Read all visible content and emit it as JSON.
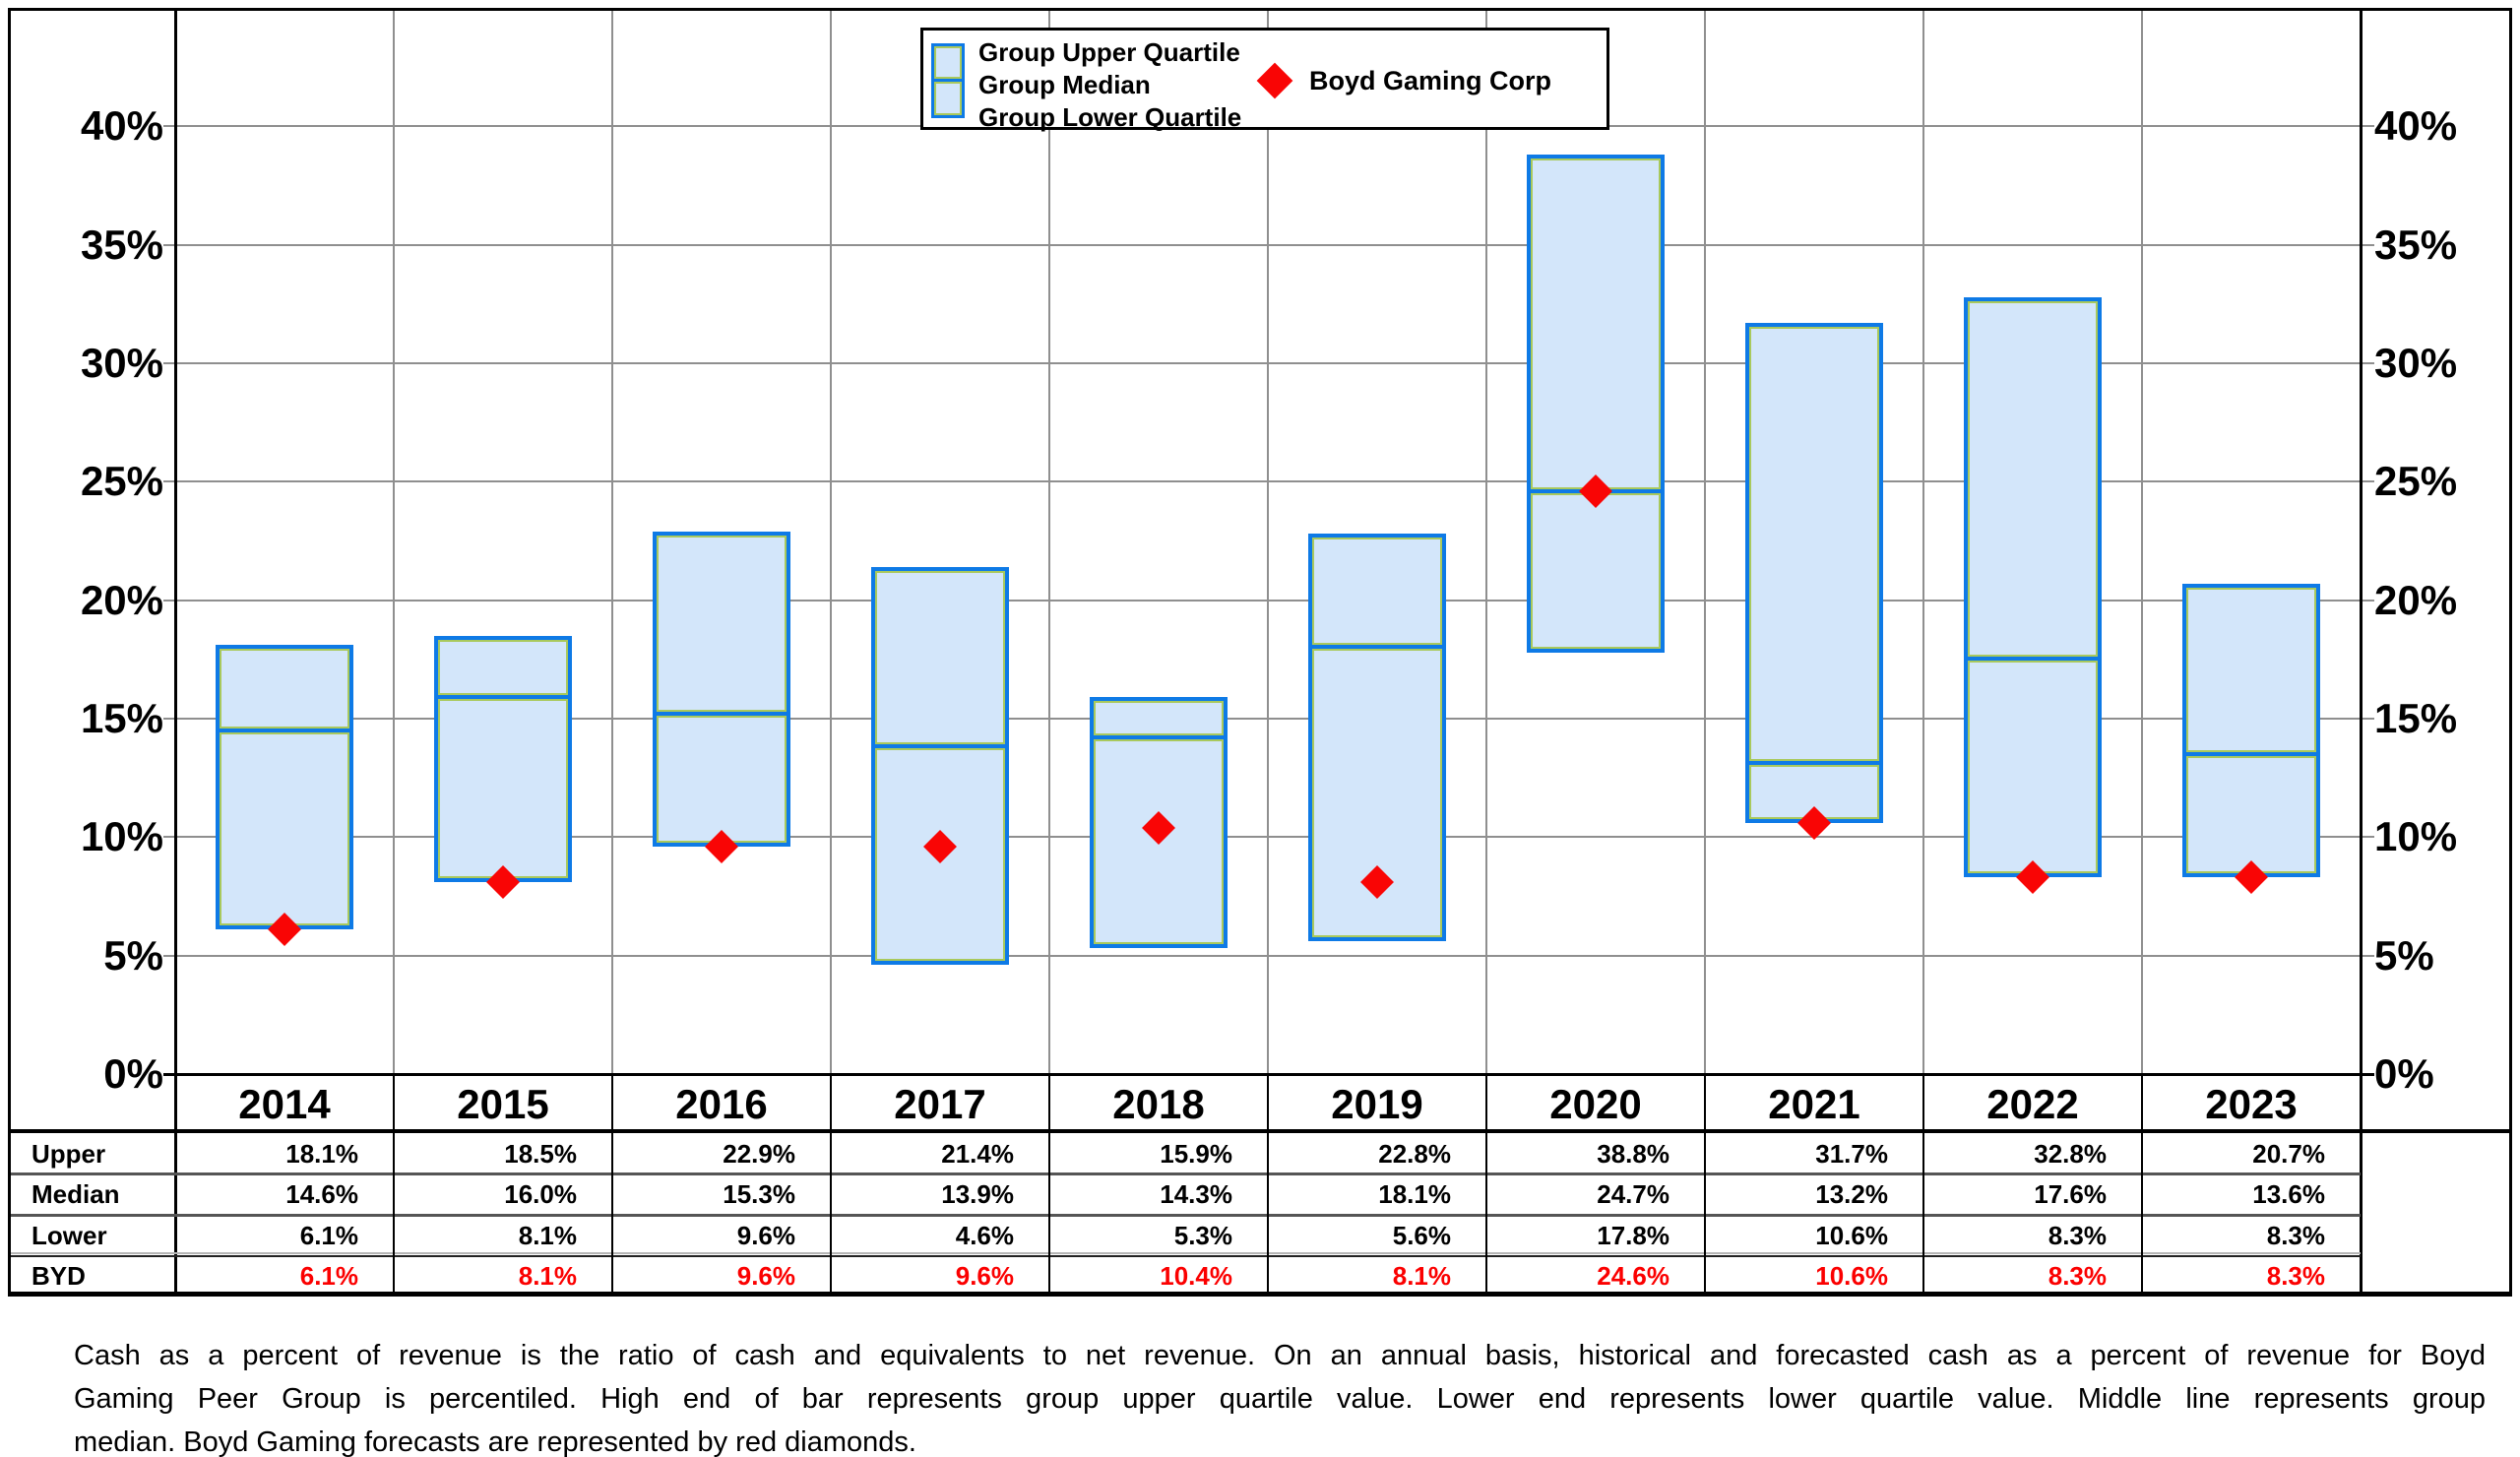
{
  "chart_data": {
    "type": "bar",
    "subtype": "floating-quartile-range-bars-with-diamond-markers",
    "categories": [
      "2014",
      "2015",
      "2016",
      "2017",
      "2018",
      "2019",
      "2020",
      "2021",
      "2022",
      "2023"
    ],
    "series": [
      {
        "name": "Group Upper Quartile",
        "values": [
          18.1,
          18.5,
          22.9,
          21.4,
          15.9,
          22.8,
          38.8,
          31.7,
          32.8,
          20.7
        ]
      },
      {
        "name": "Group Median",
        "values": [
          14.6,
          16.0,
          15.3,
          13.9,
          14.3,
          18.1,
          24.7,
          13.2,
          17.6,
          13.6
        ]
      },
      {
        "name": "Group Lower Quartile",
        "values": [
          6.1,
          8.1,
          9.6,
          4.6,
          5.3,
          5.6,
          17.8,
          10.6,
          8.3,
          8.3
        ]
      },
      {
        "name": "Boyd Gaming Corp",
        "values": [
          6.1,
          8.1,
          9.6,
          9.6,
          10.4,
          8.1,
          24.6,
          10.6,
          8.3,
          8.3
        ]
      }
    ],
    "ylim": [
      0,
      45
    ],
    "yticks": [
      0,
      5,
      10,
      15,
      20,
      25,
      30,
      35,
      40
    ],
    "ytick_suffix": "%",
    "grid": true,
    "legend_position": "top-center",
    "marker_style": "red-diamond"
  },
  "legend": {
    "group_labels": [
      "Group Upper Quartile",
      "Group Median",
      "Group Lower Quartile"
    ],
    "marker_label": "Boyd Gaming Corp"
  },
  "table": {
    "row_labels": [
      "Upper",
      "Median",
      "Lower",
      "BYD"
    ],
    "columns": [
      "2014",
      "2015",
      "2016",
      "2017",
      "2018",
      "2019",
      "2020",
      "2021",
      "2022",
      "2023"
    ],
    "rows": [
      [
        "18.1%",
        "18.5%",
        "22.9%",
        "21.4%",
        "15.9%",
        "22.8%",
        "38.8%",
        "31.7%",
        "32.8%",
        "20.7%"
      ],
      [
        "14.6%",
        "16.0%",
        "15.3%",
        "13.9%",
        "14.3%",
        "18.1%",
        "24.7%",
        "13.2%",
        "17.6%",
        "13.6%"
      ],
      [
        "6.1%",
        "8.1%",
        "9.6%",
        "4.6%",
        "5.3%",
        "5.6%",
        "17.8%",
        "10.6%",
        "8.3%",
        "8.3%"
      ],
      [
        "6.1%",
        "8.1%",
        "9.6%",
        "9.6%",
        "10.4%",
        "8.1%",
        "24.6%",
        "10.6%",
        "8.3%",
        "8.3%"
      ]
    ]
  },
  "footer": {
    "lines": [
      "Cash as a percent of revenue is the ratio of cash and equivalents to net revenue.  On an annual basis, historical and forecasted cash as a percent of revenue for Boyd",
      "Gaming Peer Group is percentiled.  High end of bar represents group upper quartile value.  Lower end represents lower quartile value.  Middle line represents group",
      "median.  Boyd Gaming forecasts are represented by red diamonds."
    ]
  },
  "colors": {
    "bar_fill": "#d3e6fa",
    "bar_border": "#0e7ae6",
    "bar_inner_outline": "#a9c95c",
    "marker": "#f90505",
    "byd_text": "#fb0000",
    "gridline": "#8f8f8f",
    "frame": "#000000"
  }
}
